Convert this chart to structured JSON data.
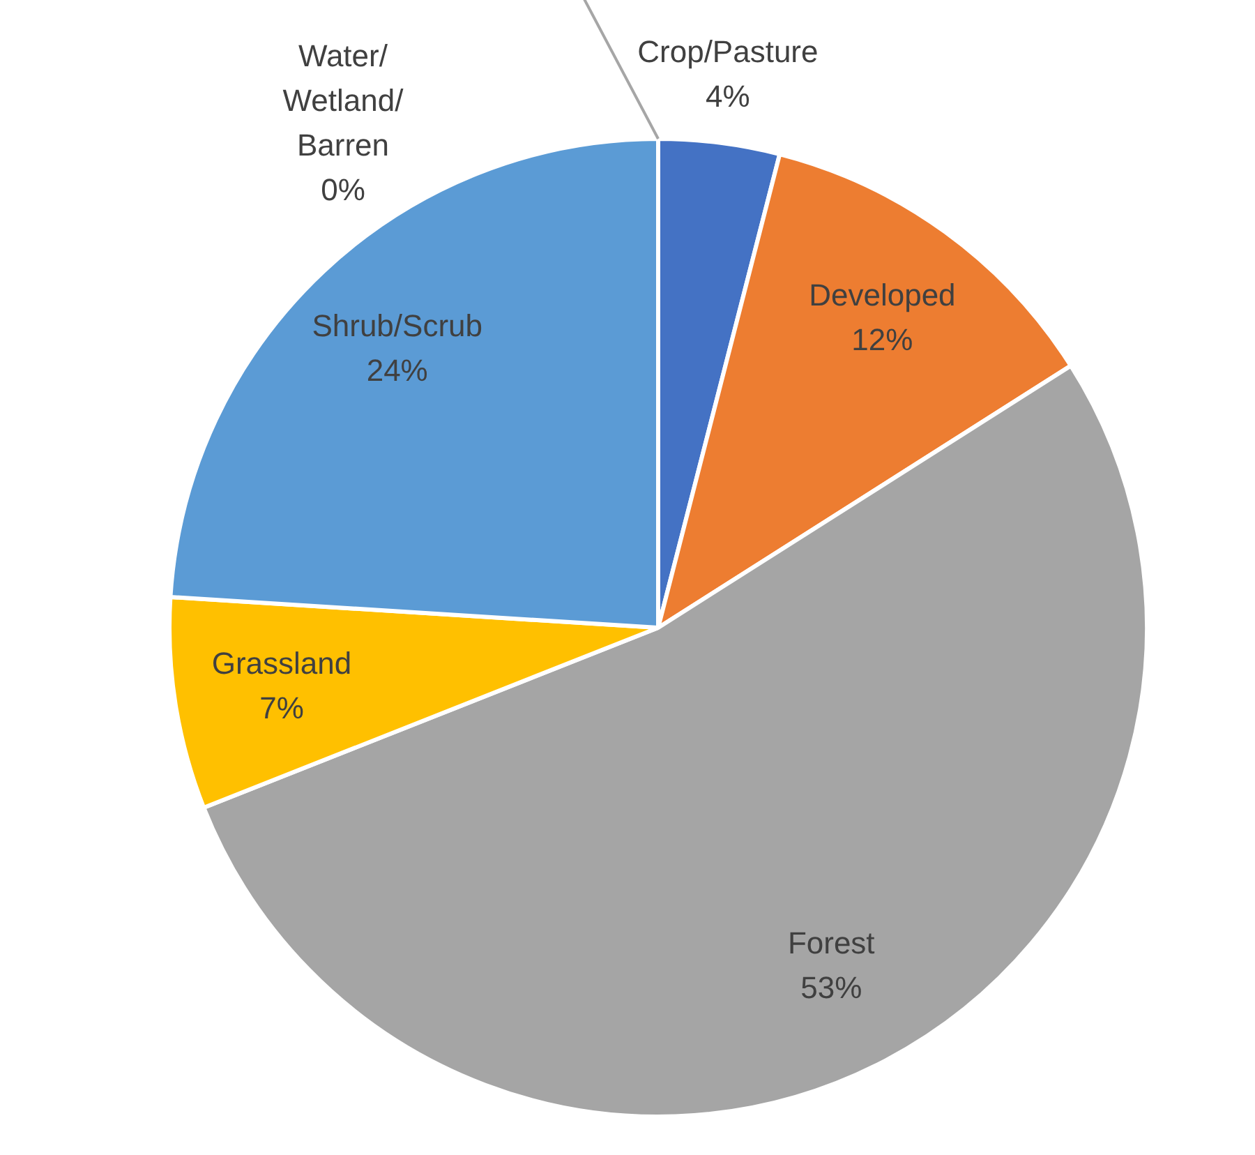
{
  "chart_data": {
    "type": "pie",
    "categories": [
      "Crop/Pasture",
      "Developed",
      "Forest",
      "Grassland",
      "Shrub/Scrub",
      "Water/Wetland/Barren"
    ],
    "values": [
      4,
      12,
      53,
      7,
      24,
      0
    ],
    "colors": [
      "#4472c4",
      "#ed7d31",
      "#a5a5a5",
      "#ffc000",
      "#5b9bd5",
      "#70ad47"
    ],
    "value_labels": [
      "4%",
      "12%",
      "53%",
      "7%",
      "24%",
      "0%"
    ],
    "legend": false
  }
}
